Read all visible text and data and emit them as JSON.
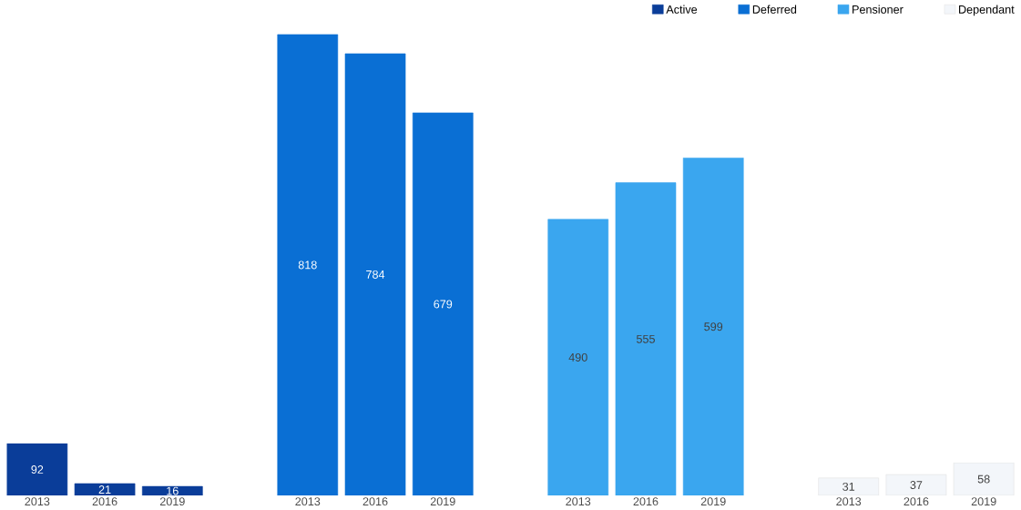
{
  "chart_data": {
    "type": "bar",
    "categories": [
      "2013",
      "2016",
      "2019",
      "2013",
      "2016",
      "2019",
      "2013",
      "2016",
      "2019",
      "2013",
      "2016",
      "2019"
    ],
    "series": [
      {
        "name": "Active",
        "color": "#0a3d99",
        "values": [
          92,
          21,
          16,
          null,
          null,
          null,
          null,
          null,
          null,
          null,
          null,
          null
        ]
      },
      {
        "name": "Deferred",
        "color": "#0a6fd4",
        "values": [
          null,
          null,
          null,
          818,
          784,
          679,
          null,
          null,
          null,
          null,
          null,
          null
        ]
      },
      {
        "name": "Pensioner",
        "color": "#3aa6ef",
        "values": [
          null,
          null,
          null,
          null,
          null,
          null,
          490,
          555,
          599,
          null,
          null,
          null
        ]
      },
      {
        "name": "Dependant",
        "color": "#f3f6fa",
        "values": [
          null,
          null,
          null,
          null,
          null,
          null,
          null,
          null,
          null,
          31,
          37,
          58
        ]
      }
    ],
    "data_labels": true,
    "legend": "top right"
  }
}
